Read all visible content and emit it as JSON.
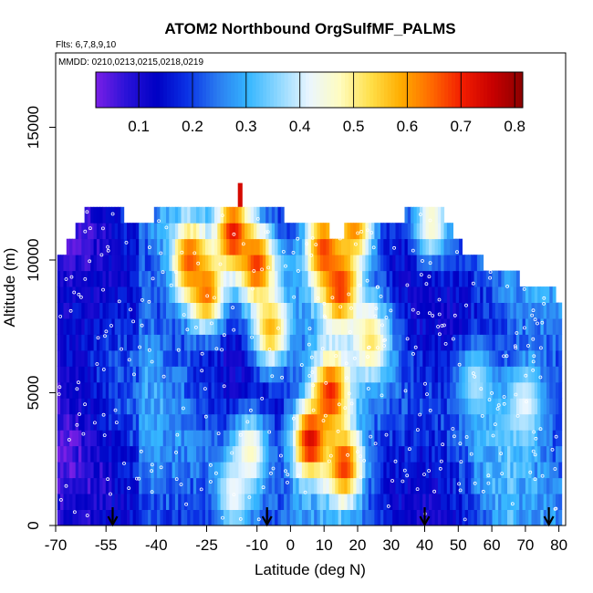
{
  "chart_data": {
    "type": "heatmap",
    "title": "ATOM2 Northbound OrgSulfMF_PALMS",
    "flights_label": "Flts: 6,7,8,9,10",
    "dates_label": "MMDD: 0210,0213,0215,0218,0219",
    "xlabel": "Latitude (deg N)",
    "ylabel": "Altitude (m)",
    "xlim": [
      -70,
      82
    ],
    "ylim": [
      0,
      17800
    ],
    "x_ticks": [
      -70,
      -55,
      -40,
      -25,
      -10,
      0,
      10,
      20,
      30,
      40,
      50,
      60,
      70,
      80
    ],
    "x_tick_labels": [
      "-70",
      "-55",
      "-40",
      "-25",
      "-10",
      "0",
      "10",
      "20",
      "30",
      "40",
      "50",
      "60",
      "70",
      "80"
    ],
    "y_ticks": [
      0,
      5000,
      10000,
      15000
    ],
    "y_tick_labels": [
      "0",
      "5000",
      "10000",
      "15000"
    ],
    "colorbar": {
      "range": [
        0.02,
        0.815
      ],
      "ticks": [
        0.1,
        0.2,
        0.3,
        0.4,
        0.5,
        0.6,
        0.7,
        0.8
      ],
      "tick_labels": [
        "0.1",
        "0.2",
        "0.3",
        "0.4",
        "0.5",
        "0.6",
        "0.7",
        "0.8"
      ],
      "colors": [
        "#7a1fe6",
        "#2a12d8",
        "#0000c4",
        "#0a32e6",
        "#2a7cf0",
        "#35b6ff",
        "#8fd8ff",
        "#eaf6ff",
        "#fffcc0",
        "#ffe04a",
        "#ffad00",
        "#ff6a00",
        "#f21d00",
        "#c70000",
        "#8c0000"
      ]
    },
    "surface_arrows_lat": [
      -53,
      -7,
      40,
      77
    ],
    "altitude_bins": [
      0,
      600,
      1200,
      1800,
      2400,
      3000,
      3600,
      4200,
      4800,
      5400,
      6000,
      6600,
      7200,
      7800,
      8400,
      9000,
      9600,
      10200,
      10800,
      11400,
      12000
    ],
    "top_altitude": {
      "lat": -58,
      "lat_end": 47,
      "alt_top": 12000
    },
    "alt_profile": [
      [
        -70,
        10000
      ],
      [
        -69,
        10100
      ],
      [
        -60,
        12000
      ],
      [
        -52,
        12000
      ],
      [
        -46,
        11200
      ],
      [
        -38,
        12000
      ],
      [
        -20,
        12200
      ],
      [
        -15,
        12300
      ],
      [
        5,
        11400
      ],
      [
        14,
        11000
      ],
      [
        20,
        11300
      ],
      [
        28,
        11600
      ],
      [
        40,
        11800
      ],
      [
        46,
        11700
      ],
      [
        52,
        10400
      ],
      [
        62,
        9500
      ],
      [
        75,
        9100
      ],
      [
        80,
        8600
      ]
    ],
    "plume_spike": {
      "lat": -15,
      "alt": 12900
    },
    "hotspots": [
      {
        "lat": -30,
        "alt": 10000,
        "value": 0.67
      },
      {
        "lat": -25,
        "alt": 8800,
        "value": 0.64
      },
      {
        "lat": -17,
        "alt": 11000,
        "value": 0.72
      },
      {
        "lat": -10,
        "alt": 9800,
        "value": 0.69
      },
      {
        "lat": -6,
        "alt": 7400,
        "value": 0.58
      },
      {
        "lat": 10,
        "alt": 10400,
        "value": 0.68
      },
      {
        "lat": 15,
        "alt": 9000,
        "value": 0.7
      },
      {
        "lat": 19,
        "alt": 11300,
        "value": 0.62
      },
      {
        "lat": 24,
        "alt": 7000,
        "value": 0.52
      },
      {
        "lat": 12,
        "alt": 5000,
        "value": 0.7
      },
      {
        "lat": 6,
        "alt": 3200,
        "value": 0.74
      },
      {
        "lat": 16,
        "alt": 2300,
        "value": 0.69
      },
      {
        "lat": -12,
        "alt": 2800,
        "value": 0.48
      },
      {
        "lat": -17,
        "alt": 1200,
        "value": 0.43
      },
      {
        "lat": 42,
        "alt": 11400,
        "value": 0.47
      },
      {
        "lat": 55,
        "alt": 5400,
        "value": 0.38
      },
      {
        "lat": 70,
        "alt": 4600,
        "value": 0.42
      }
    ]
  }
}
